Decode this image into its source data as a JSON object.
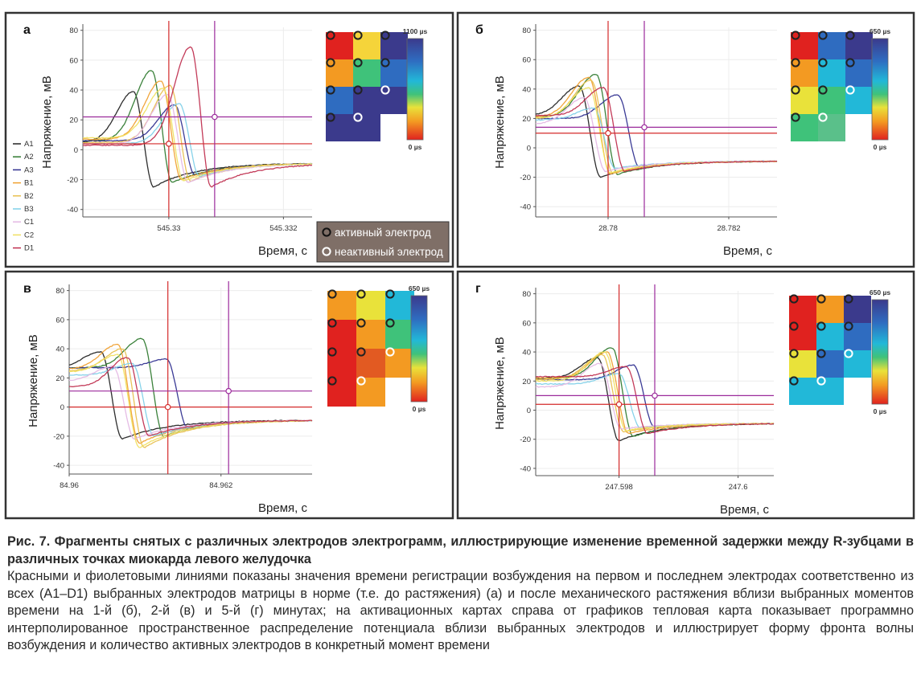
{
  "figure": {
    "ylabel": "Напряжение, мВ",
    "xlabel": "Время, с",
    "legend_active": "активный электрод",
    "legend_inactive": "неактивный электрод",
    "colormap_bottom_label": "0 µs",
    "colors": {
      "red_marker": "#d42a2a",
      "purple_marker": "#9b2a9b",
      "panel_border": "#333333",
      "active_electrode": "#222222",
      "inactive_electrode": "#ffffff"
    }
  },
  "chart_data": [
    {
      "type": "line",
      "panel_label": "а",
      "xlim": [
        545.3285,
        545.3325
      ],
      "ylim": [
        -45,
        82
      ],
      "yticks": [
        -40,
        -20,
        0,
        20,
        40,
        60,
        80
      ],
      "xtick_labels": [
        "545.33",
        "545.332"
      ],
      "xtick_values": [
        545.33,
        545.332
      ],
      "red_marker": {
        "x": 545.33,
        "y": 4
      },
      "purple_marker": {
        "x": 545.3308,
        "y": 22
      },
      "colormap_top_label": "1100 µs",
      "electrode_grid": [
        [
          "active",
          "active",
          "active"
        ],
        [
          "active",
          "active",
          "active"
        ],
        [
          "active",
          "active",
          "inactive"
        ],
        [
          "active",
          "inactive",
          "inactive"
        ]
      ],
      "series_names": [
        "A1",
        "A2",
        "A3",
        "B1",
        "B2",
        "B3",
        "C1",
        "C2",
        "D1"
      ],
      "series": [
        {
          "name": "A1",
          "color": "#222222",
          "peak_t": 0.22,
          "peak": 39,
          "trough": -25,
          "start": 5
        },
        {
          "name": "A2",
          "color": "#2f7a2f",
          "peak_t": 0.3,
          "peak": 53,
          "trough": -22,
          "start": 6
        },
        {
          "name": "A3",
          "color": "#303090",
          "peak_t": 0.4,
          "peak": 30,
          "trough": -17,
          "start": 6
        },
        {
          "name": "B1",
          "color": "#f0a030",
          "peak_t": 0.34,
          "peak": 46,
          "trough": -20,
          "start": 7
        },
        {
          "name": "B2",
          "color": "#e8c050",
          "peak_t": 0.38,
          "peak": 43,
          "trough": -21,
          "start": 5
        },
        {
          "name": "B3",
          "color": "#7fd0e8",
          "peak_t": 0.42,
          "peak": 31,
          "trough": -18,
          "start": 4
        },
        {
          "name": "C1",
          "color": "#e4b8e4",
          "peak_t": 0.37,
          "peak": 37,
          "trough": -22,
          "start": 4
        },
        {
          "name": "C2",
          "color": "#f0e060",
          "peak_t": 0.35,
          "peak": 41,
          "trough": -21,
          "start": 8
        },
        {
          "name": "D1",
          "color": "#c03050",
          "peak_t": 0.47,
          "peak": 69,
          "trough": -25,
          "start": 3
        }
      ]
    },
    {
      "type": "line",
      "panel_label": "б",
      "xlim": [
        28.7788,
        28.7828
      ],
      "ylim": [
        -47,
        82
      ],
      "yticks": [
        -40,
        -20,
        0,
        20,
        40,
        60,
        80
      ],
      "xtick_labels": [
        "28.78",
        "28.782"
      ],
      "xtick_values": [
        28.78,
        28.782
      ],
      "red_marker": {
        "x": 28.78,
        "y": 10
      },
      "purple_marker": {
        "x": 28.7806,
        "y": 14
      },
      "colormap_top_label": "650 µs",
      "electrode_grid": [
        [
          "active",
          "active",
          "active"
        ],
        [
          "active",
          "active",
          "active"
        ],
        [
          "active",
          "active",
          "inactive"
        ],
        [
          "active",
          "inactive",
          "inactive"
        ]
      ],
      "series": [
        {
          "name": "A1",
          "color": "#222222",
          "peak_t": 0.18,
          "peak": 42,
          "trough": -20,
          "start": 22
        },
        {
          "name": "A2",
          "color": "#2f7a2f",
          "peak_t": 0.25,
          "peak": 50,
          "trough": -18,
          "start": 21
        },
        {
          "name": "A3",
          "color": "#303090",
          "peak_t": 0.34,
          "peak": 36,
          "trough": -13,
          "start": 20
        },
        {
          "name": "B1",
          "color": "#f0a030",
          "peak_t": 0.22,
          "peak": 48,
          "trough": -18,
          "start": 21
        },
        {
          "name": "B2",
          "color": "#e8c050",
          "peak_t": 0.23,
          "peak": 46,
          "trough": -17,
          "start": 20
        },
        {
          "name": "B3",
          "color": "#7fd0e8",
          "peak_t": 0.24,
          "peak": 27,
          "trough": -14,
          "start": 19
        },
        {
          "name": "C1",
          "color": "#e4b8e4",
          "peak_t": 0.2,
          "peak": 34,
          "trough": -16,
          "start": 16
        },
        {
          "name": "C2",
          "color": "#f0e060",
          "peak_t": 0.22,
          "peak": 41,
          "trough": -17,
          "start": 20
        },
        {
          "name": "D1",
          "color": "#c03050",
          "peak_t": 0.28,
          "peak": 41,
          "trough": -16,
          "start": 22
        }
      ]
    },
    {
      "type": "line",
      "panel_label": "в",
      "xlim": [
        84.96,
        84.9632
      ],
      "ylim": [
        -46,
        82
      ],
      "yticks": [
        -40,
        -20,
        0,
        20,
        40,
        60,
        80
      ],
      "xtick_labels": [
        "84.96",
        "84.962"
      ],
      "xtick_values": [
        84.96,
        84.962
      ],
      "red_marker": {
        "x": 84.9613,
        "y": 0
      },
      "purple_marker": {
        "x": 84.9621,
        "y": 11
      },
      "colormap_top_label": "650 µs",
      "electrode_grid": [
        [
          "active",
          "active",
          "active"
        ],
        [
          "active",
          "active",
          "active"
        ],
        [
          "active",
          "active",
          "inactive"
        ],
        [
          "active",
          "inactive",
          "inactive"
        ]
      ],
      "series": [
        {
          "name": "A1",
          "color": "#222222",
          "peak_t": 0.13,
          "peak": 38,
          "trough": -22,
          "start": 27
        },
        {
          "name": "A2",
          "color": "#2f7a2f",
          "peak_t": 0.3,
          "peak": 47,
          "trough": -20,
          "start": 27
        },
        {
          "name": "A3",
          "color": "#303090",
          "peak_t": 0.4,
          "peak": 33,
          "trough": -15,
          "start": 27
        },
        {
          "name": "B1",
          "color": "#f0a030",
          "peak_t": 0.2,
          "peak": 43,
          "trough": -25,
          "start": 26
        },
        {
          "name": "B2",
          "color": "#e8c050",
          "peak_t": 0.22,
          "peak": 40,
          "trough": -28,
          "start": 25
        },
        {
          "name": "B3",
          "color": "#7fd0e8",
          "peak_t": 0.26,
          "peak": 30,
          "trough": -20,
          "start": 22
        },
        {
          "name": "C1",
          "color": "#e4b8e4",
          "peak_t": 0.18,
          "peak": 28,
          "trough": -22,
          "start": 18
        },
        {
          "name": "C2",
          "color": "#f0e060",
          "peak_t": 0.2,
          "peak": 36,
          "trough": -28,
          "start": 24
        },
        {
          "name": "D1",
          "color": "#c03050",
          "peak_t": 0.24,
          "peak": 34,
          "trough": -20,
          "start": 14
        }
      ]
    },
    {
      "type": "line",
      "panel_label": "г",
      "xlim": [
        247.5966,
        247.6006
      ],
      "ylim": [
        -45,
        82
      ],
      "yticks": [
        -40,
        -20,
        0,
        20,
        40,
        60,
        80
      ],
      "xtick_labels": [
        "247.598",
        "247.6"
      ],
      "xtick_values": [
        247.598,
        247.6
      ],
      "red_marker": {
        "x": 247.598,
        "y": 4
      },
      "purple_marker": {
        "x": 247.5986,
        "y": 10
      },
      "colormap_top_label": "650 µs",
      "electrode_grid": [
        [
          "active",
          "active",
          "active"
        ],
        [
          "active",
          "active",
          "active"
        ],
        [
          "active",
          "active",
          "inactive"
        ],
        [
          "active",
          "inactive",
          "inactive"
        ]
      ],
      "series": [
        {
          "name": "A1",
          "color": "#222222",
          "peak_t": 0.26,
          "peak": 36,
          "trough": -21,
          "start": 22
        },
        {
          "name": "A2",
          "color": "#2f7a2f",
          "peak_t": 0.32,
          "peak": 43,
          "trough": -18,
          "start": 22
        },
        {
          "name": "A3",
          "color": "#303090",
          "peak_t": 0.41,
          "peak": 31,
          "trough": -12,
          "start": 21
        },
        {
          "name": "B1",
          "color": "#f0a030",
          "peak_t": 0.3,
          "peak": 40,
          "trough": -16,
          "start": 22
        },
        {
          "name": "B2",
          "color": "#e8c050",
          "peak_t": 0.28,
          "peak": 38,
          "trough": -15,
          "start": 21
        },
        {
          "name": "B3",
          "color": "#7fd0e8",
          "peak_t": 0.35,
          "peak": 25,
          "trough": -12,
          "start": 18
        },
        {
          "name": "C1",
          "color": "#e4b8e4",
          "peak_t": 0.27,
          "peak": 32,
          "trough": -13,
          "start": 16
        },
        {
          "name": "C2",
          "color": "#f0e060",
          "peak_t": 0.29,
          "peak": 40,
          "trough": -14,
          "start": 20
        },
        {
          "name": "D1",
          "color": "#c03050",
          "peak_t": 0.38,
          "peak": 30,
          "trough": -16,
          "start": 23
        }
      ]
    }
  ],
  "caption": {
    "title": "Рис. 7. Фрагменты снятых с различных электродов электрограмм, иллюстрирующие изменение временной задержки между R-зубцами в различных точках миокарда левого желудочка",
    "body": "Красными и фиолетовыми линиями показаны значения времени регистрации возбуждения на первом и последнем электродах соответственно из всех (A1–D1) выбранных электродов матрицы в норме (т.е. до растяжения) (а) и после механического растяжения вблизи выбранных моментов времени на 1-й (б), 2-й (в) и 5-й (г) минутах; на активационных картах справа от графиков тепловая карта показывает программно интерполированное пространственное распределение потенциала вблизи выбранных электродов и иллюстрирует форму фронта волны возбуждения и количество активных электродов в конкретный момент времени"
  }
}
